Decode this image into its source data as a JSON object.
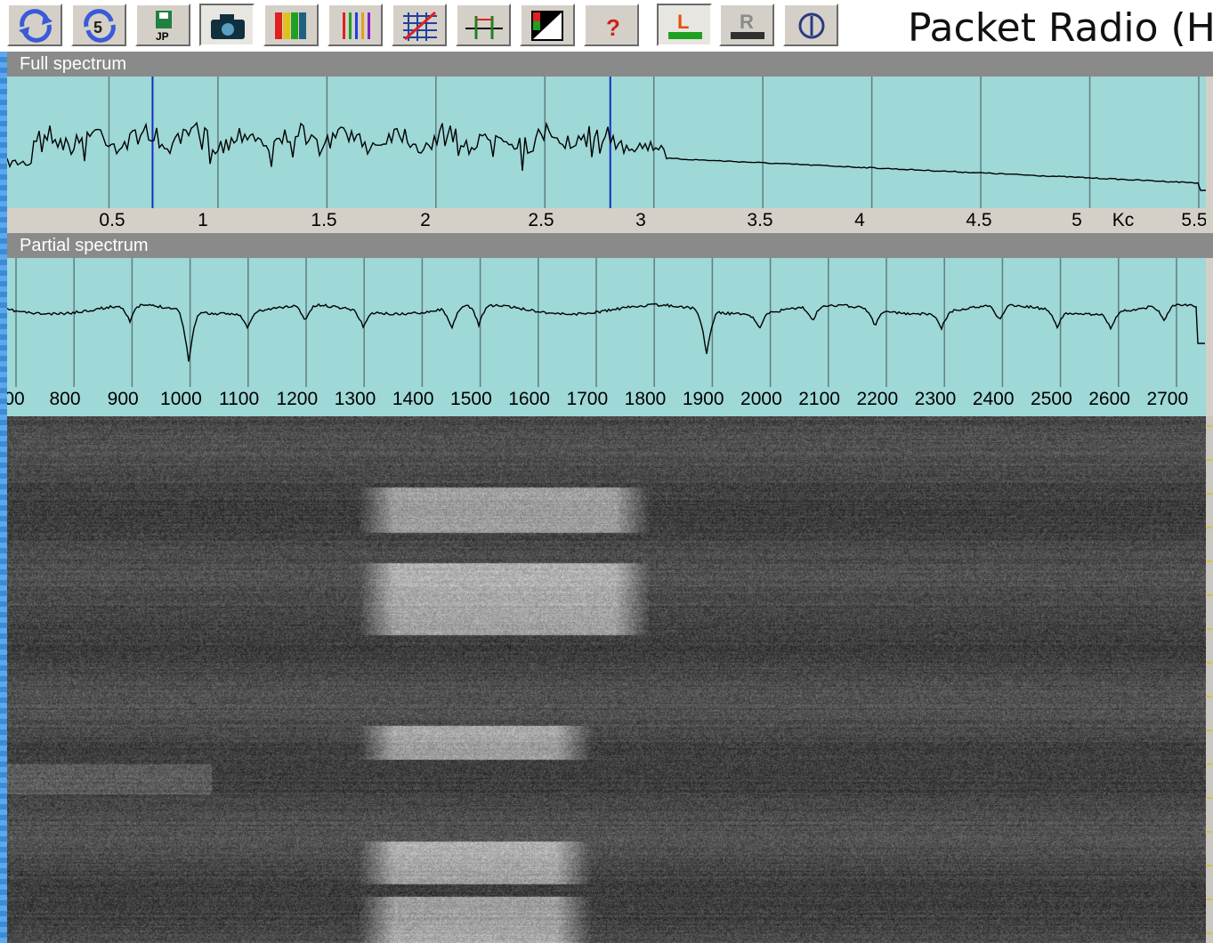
{
  "window": {
    "title": "Packet Radio (H"
  },
  "toolbar": {
    "buttons": [
      {
        "icon": "refresh-icon",
        "pressed": false
      },
      {
        "icon": "refresh-5-icon",
        "pressed": false
      },
      {
        "icon": "save-jpg-icon",
        "pressed": false
      },
      {
        "icon": "camera-icon",
        "pressed": true
      },
      {
        "icon": "color-bars-icon",
        "pressed": false
      },
      {
        "icon": "colored-lines-icon",
        "pressed": false
      },
      {
        "icon": "grid-crossed-icon",
        "pressed": false
      },
      {
        "icon": "markers-icon",
        "pressed": false
      },
      {
        "icon": "color-palette-icon",
        "pressed": false
      },
      {
        "icon": "help-icon",
        "pressed": false
      },
      {
        "icon": "left-channel-icon",
        "pressed": true
      },
      {
        "icon": "right-channel-icon",
        "pressed": false
      },
      {
        "icon": "power-icon",
        "pressed": false
      }
    ],
    "help_glyph": "?",
    "left_channel_glyph": "L",
    "right_channel_glyph": "R",
    "jpg_glyph": "JP"
  },
  "full_spectrum": {
    "title": "Full spectrum",
    "tick_labels": [
      "0.5",
      "1",
      "1.5",
      "2",
      "2.5",
      "3",
      "3.5",
      "4",
      "4.5",
      "5",
      "Kc",
      "5.5"
    ],
    "axis_min": 0.0,
    "axis_max": 5.5,
    "marker_lo": 0.7,
    "marker_hi": 2.8,
    "line_color": "#000000",
    "marker_color": "#1030c0",
    "background_color": "#9ed8d7"
  },
  "partial_spectrum": {
    "title": "Partial spectrum",
    "tick_labels": [
      "00",
      "800",
      "900",
      "1000",
      "1100",
      "1200",
      "1300",
      "1400",
      "1500",
      "1600",
      "1700",
      "1800",
      "1900",
      "2000",
      "2100",
      "2200",
      "2300",
      "2400",
      "2500",
      "2600",
      "2700"
    ],
    "axis_min": 700,
    "axis_max": 2750,
    "background_color": "#9ed8d7"
  },
  "waterfall": {
    "colors": {
      "noise": "#4a4a4a",
      "signal": "#dedede"
    },
    "signal_bursts_hz": [
      {
        "from": 1300,
        "to": 1800
      },
      {
        "from": 1300,
        "to": 1800
      },
      {
        "from": 1300,
        "to": 1700
      },
      {
        "from": 1300,
        "to": 1700
      },
      {
        "from": 1300,
        "to": 1700
      }
    ]
  }
}
